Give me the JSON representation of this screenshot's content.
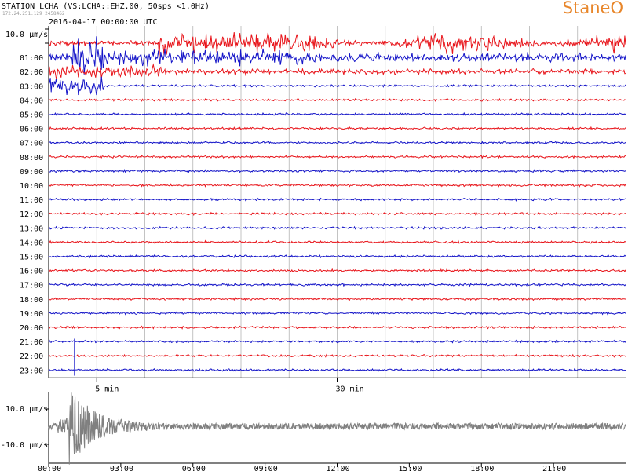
{
  "header": {
    "station_title": "STATION LCHA (VS:LCHA::EHZ.00, 50sps <1.0Hz)",
    "small_line": "172.24.251.129 2458462",
    "date_label": "2016-04-17 00:00:00 UTC",
    "scale_label": "10.0 µm/s"
  },
  "brand": {
    "text": "StaneO",
    "color": "#e8862a"
  },
  "colors": {
    "red": "#e8151b",
    "blue": "#1414c8",
    "grey": "#808080",
    "grid": "#b4b4b4"
  },
  "chart_data": [
    {
      "type": "line",
      "title": "STATION LCHA (VS:LCHA::EHZ.00, 50sps <1.0Hz)",
      "subtitle": "2016-04-17 00:00:00 UTC",
      "ylabel": "10.0 µm/s",
      "row_labels": [
        "",
        "01:00",
        "02:00",
        "03:00",
        "04:00",
        "05:00",
        "06:00",
        "07:00",
        "08:00",
        "09:00",
        "10:00",
        "11:00",
        "12:00",
        "13:00",
        "14:00",
        "15:00",
        "16:00",
        "17:00",
        "18:00",
        "19:00",
        "20:00",
        "21:00",
        "22:00",
        "23:00"
      ],
      "x_ticks": [
        {
          "x": 5,
          "label": "5 min"
        },
        {
          "x": 30,
          "label": "30 min"
        }
      ],
      "xlim": [
        0,
        60
      ],
      "rows": 24,
      "series_colors": [
        "red",
        "blue"
      ],
      "grid": true,
      "quake_onset_min": 3.2,
      "rows_with_event": [
        0,
        1,
        2,
        21,
        22,
        23
      ]
    },
    {
      "type": "line",
      "ylabel_top": "10.0 µm/s",
      "ylabel_bottom": "-10.0 µm/s",
      "ylim": [
        -10,
        10
      ],
      "x_ticks": [
        "00:00",
        "03:00",
        "06:00",
        "09:00",
        "12:00",
        "15:00",
        "18:00",
        "21:00"
      ],
      "xlim_hours": [
        0,
        24
      ],
      "series_color": "grey",
      "event_hour": 0.85
    }
  ]
}
